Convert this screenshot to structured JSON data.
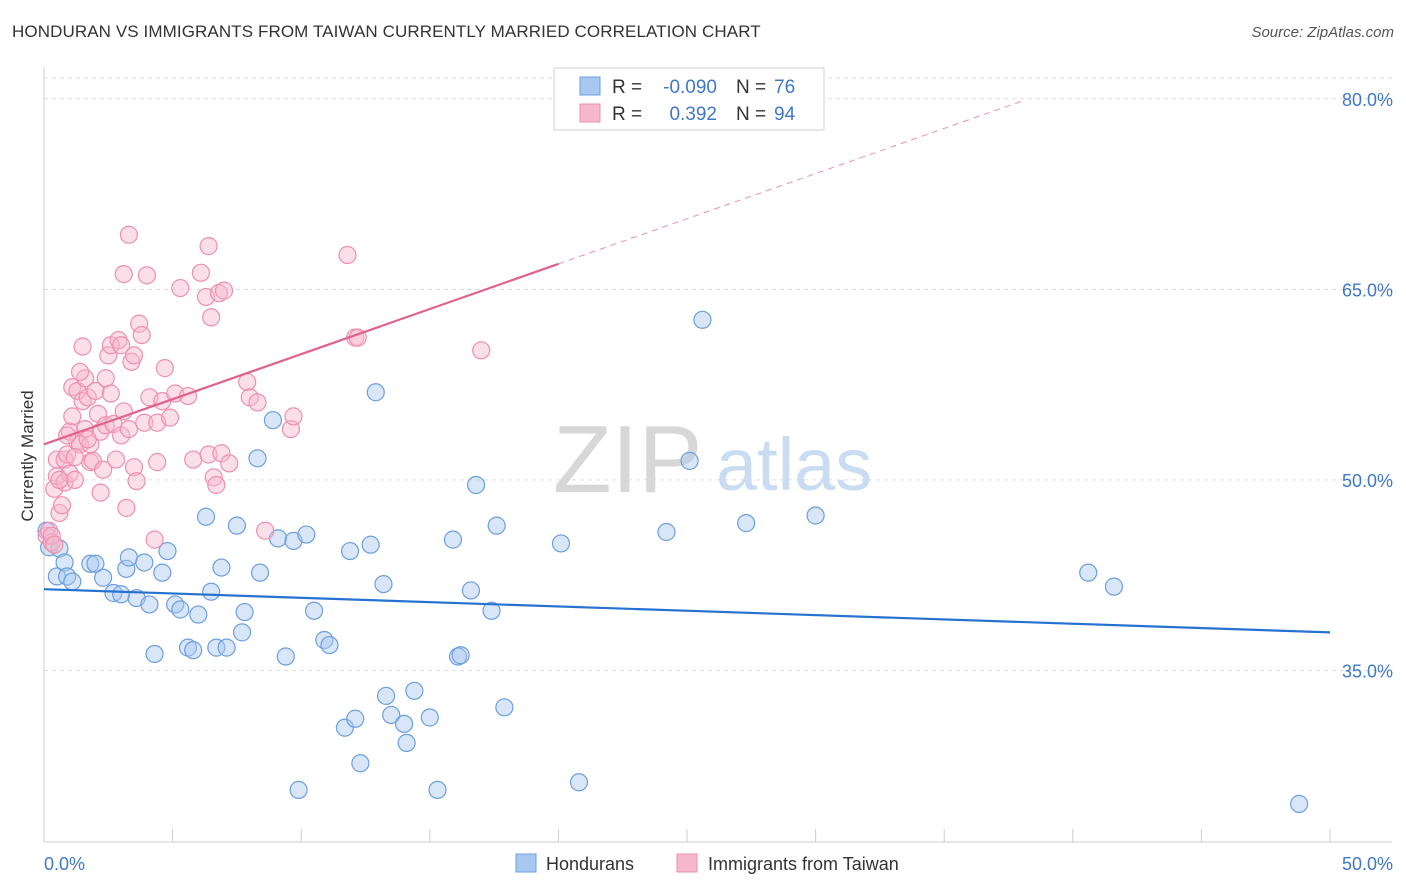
{
  "header": {
    "title": "HONDURAN VS IMMIGRANTS FROM TAIWAN CURRENTLY MARRIED CORRELATION CHART",
    "source": "Source: ZipAtlas.com"
  },
  "watermark": {
    "zip": "ZIP",
    "atlas": "atlas"
  },
  "colors": {
    "blue_fill": "#a9c8f0",
    "blue_stroke": "#6b9fe0",
    "blue_line": "#2672d0",
    "pink_fill": "#f6b8cc",
    "pink_stroke": "#ee8fae",
    "pink_line": "#e0628c",
    "value_text": "#3f78c8",
    "grid": "#dddddd"
  },
  "legend_box": {
    "rows": [
      {
        "r_label": "R =",
        "r_value": "-0.090",
        "n_label": "N =",
        "n_value": "76",
        "color": "blue"
      },
      {
        "r_label": "R =",
        "r_value": "0.392",
        "n_label": "N =",
        "n_value": "94",
        "color": "pink"
      }
    ]
  },
  "chart_data": {
    "type": "scatter",
    "title": "HONDURAN VS IMMIGRANTS FROM TAIWAN CURRENTLY MARRIED CORRELATION CHART",
    "xlabel": "",
    "ylabel": "Currently Married",
    "xlim": [
      0,
      50
    ],
    "ylim": [
      21.5,
      82.5
    ],
    "x_tick_labels": [
      {
        "value": 0,
        "label": "0.0%"
      },
      {
        "value": 50,
        "label": "50.0%"
      }
    ],
    "y_tick_labels": [
      {
        "value": 35,
        "label": "35.0%"
      },
      {
        "value": 50,
        "label": "50.0%"
      },
      {
        "value": 65,
        "label": "65.0%"
      },
      {
        "value": 80,
        "label": "80.0%"
      }
    ],
    "y_gridlines": [
      35,
      50,
      65,
      80
    ],
    "x_minor_ticks": [
      0,
      5,
      10,
      15,
      20,
      25,
      30,
      35,
      40,
      45,
      50
    ],
    "grid": true,
    "legend_position": "bottom-center",
    "series": [
      {
        "name": "Hondurans",
        "color": "blue",
        "r": -0.09,
        "n": 76,
        "trend": {
          "x": [
            0,
            50
          ],
          "y": [
            41.4,
            38.0
          ],
          "dashed_after": null
        },
        "points": [
          [
            0.1,
            46.0
          ],
          [
            0.2,
            44.7
          ],
          [
            0.5,
            42.4
          ],
          [
            0.6,
            44.6
          ],
          [
            0.8,
            43.5
          ],
          [
            0.9,
            42.4
          ],
          [
            1.1,
            42.0
          ],
          [
            1.8,
            43.4
          ],
          [
            2.0,
            43.4
          ],
          [
            2.3,
            42.3
          ],
          [
            2.7,
            41.1
          ],
          [
            3.0,
            41.0
          ],
          [
            3.2,
            43.0
          ],
          [
            3.3,
            43.9
          ],
          [
            3.6,
            40.7
          ],
          [
            3.9,
            43.5
          ],
          [
            4.1,
            40.2
          ],
          [
            4.3,
            36.3
          ],
          [
            4.6,
            42.7
          ],
          [
            4.8,
            44.4
          ],
          [
            5.1,
            40.2
          ],
          [
            5.3,
            39.8
          ],
          [
            5.6,
            36.8
          ],
          [
            5.8,
            36.6
          ],
          [
            6.0,
            39.4
          ],
          [
            6.3,
            47.1
          ],
          [
            6.5,
            41.2
          ],
          [
            6.7,
            36.8
          ],
          [
            6.9,
            43.1
          ],
          [
            7.1,
            36.8
          ],
          [
            7.5,
            46.4
          ],
          [
            7.7,
            38.0
          ],
          [
            7.8,
            39.6
          ],
          [
            8.3,
            51.7
          ],
          [
            8.4,
            42.7
          ],
          [
            8.9,
            54.7
          ],
          [
            9.1,
            45.4
          ],
          [
            9.4,
            36.1
          ],
          [
            9.7,
            45.2
          ],
          [
            9.9,
            25.6
          ],
          [
            10.2,
            45.7
          ],
          [
            10.5,
            39.7
          ],
          [
            10.9,
            37.4
          ],
          [
            11.1,
            37.0
          ],
          [
            11.7,
            30.5
          ],
          [
            11.9,
            44.4
          ],
          [
            12.1,
            31.2
          ],
          [
            12.3,
            27.7
          ],
          [
            12.7,
            44.9
          ],
          [
            12.9,
            56.9
          ],
          [
            13.2,
            41.8
          ],
          [
            13.3,
            33.0
          ],
          [
            13.5,
            31.5
          ],
          [
            14.0,
            30.8
          ],
          [
            14.1,
            29.3
          ],
          [
            14.4,
            33.4
          ],
          [
            15.0,
            31.3
          ],
          [
            15.3,
            25.6
          ],
          [
            15.9,
            45.3
          ],
          [
            16.1,
            36.1
          ],
          [
            16.2,
            36.2
          ],
          [
            16.6,
            41.3
          ],
          [
            16.8,
            49.6
          ],
          [
            17.4,
            39.7
          ],
          [
            17.6,
            46.4
          ],
          [
            17.9,
            32.1
          ],
          [
            20.1,
            45.0
          ],
          [
            20.8,
            26.2
          ],
          [
            24.2,
            45.9
          ],
          [
            25.1,
            51.5
          ],
          [
            25.6,
            62.6
          ],
          [
            27.3,
            46.6
          ],
          [
            30.0,
            47.2
          ],
          [
            40.6,
            42.7
          ],
          [
            41.6,
            41.6
          ],
          [
            48.8,
            24.5
          ]
        ]
      },
      {
        "name": "Immigrants from Taiwan",
        "color": "pink",
        "r": 0.392,
        "n": 94,
        "trend": {
          "x": [
            0,
            20,
            38
          ],
          "y": [
            52.8,
            67.0,
            79.8
          ],
          "dashed_after": 20
        },
        "points": [
          [
            0.1,
            45.6
          ],
          [
            0.2,
            46.0
          ],
          [
            0.3,
            45.1
          ],
          [
            0.4,
            49.3
          ],
          [
            0.5,
            50.3
          ],
          [
            0.5,
            51.6
          ],
          [
            0.6,
            47.4
          ],
          [
            0.7,
            48.0
          ],
          [
            0.8,
            49.8
          ],
          [
            0.8,
            51.6
          ],
          [
            0.9,
            52.0
          ],
          [
            1.0,
            53.8
          ],
          [
            1.0,
            50.5
          ],
          [
            1.1,
            57.3
          ],
          [
            1.1,
            55.0
          ],
          [
            1.2,
            50.0
          ],
          [
            1.3,
            57.0
          ],
          [
            1.3,
            53.0
          ],
          [
            1.4,
            52.8
          ],
          [
            1.5,
            60.5
          ],
          [
            1.5,
            56.2
          ],
          [
            1.6,
            54.0
          ],
          [
            1.6,
            58.0
          ],
          [
            1.7,
            56.5
          ],
          [
            1.8,
            52.8
          ],
          [
            1.8,
            51.4
          ],
          [
            1.9,
            51.5
          ],
          [
            2.0,
            57.0
          ],
          [
            2.1,
            55.2
          ],
          [
            2.2,
            53.8
          ],
          [
            2.3,
            50.8
          ],
          [
            2.4,
            54.3
          ],
          [
            2.4,
            58.0
          ],
          [
            2.5,
            59.8
          ],
          [
            2.6,
            60.6
          ],
          [
            2.6,
            56.8
          ],
          [
            2.7,
            54.4
          ],
          [
            2.8,
            51.6
          ],
          [
            2.9,
            61.0
          ],
          [
            3.0,
            60.6
          ],
          [
            3.0,
            53.5
          ],
          [
            3.1,
            66.2
          ],
          [
            3.1,
            55.4
          ],
          [
            3.2,
            47.8
          ],
          [
            3.3,
            69.3
          ],
          [
            3.3,
            54.0
          ],
          [
            3.4,
            59.3
          ],
          [
            3.5,
            59.8
          ],
          [
            3.5,
            51.0
          ],
          [
            3.6,
            49.9
          ],
          [
            3.7,
            62.3
          ],
          [
            3.8,
            61.4
          ],
          [
            3.9,
            54.5
          ],
          [
            4.0,
            66.1
          ],
          [
            4.1,
            56.5
          ],
          [
            4.3,
            45.3
          ],
          [
            4.4,
            51.4
          ],
          [
            4.4,
            54.5
          ],
          [
            4.6,
            56.2
          ],
          [
            4.7,
            58.8
          ],
          [
            4.9,
            54.9
          ],
          [
            5.1,
            56.8
          ],
          [
            5.3,
            65.1
          ],
          [
            5.6,
            56.6
          ],
          [
            5.8,
            51.6
          ],
          [
            6.1,
            66.3
          ],
          [
            6.3,
            64.4
          ],
          [
            6.4,
            52.0
          ],
          [
            6.4,
            68.4
          ],
          [
            6.5,
            62.8
          ],
          [
            6.6,
            50.2
          ],
          [
            6.7,
            49.6
          ],
          [
            6.8,
            64.7
          ],
          [
            6.9,
            52.1
          ],
          [
            7.0,
            64.9
          ],
          [
            7.2,
            51.3
          ],
          [
            7.9,
            57.7
          ],
          [
            8.0,
            56.5
          ],
          [
            8.3,
            56.1
          ],
          [
            8.6,
            46.0
          ],
          [
            9.6,
            54.0
          ],
          [
            9.7,
            55.0
          ],
          [
            11.8,
            67.7
          ],
          [
            12.1,
            61.2
          ],
          [
            12.2,
            61.2
          ],
          [
            17.0,
            60.2
          ],
          [
            0.3,
            45.6
          ],
          [
            0.6,
            50.0
          ],
          [
            0.9,
            53.5
          ],
          [
            1.2,
            51.8
          ],
          [
            1.4,
            58.5
          ],
          [
            1.7,
            53.2
          ],
          [
            2.2,
            49.0
          ],
          [
            0.4,
            44.9
          ]
        ]
      }
    ]
  },
  "bottom_legend": {
    "items": [
      {
        "label": "Hondurans",
        "color": "blue"
      },
      {
        "label": "Immigrants from Taiwan",
        "color": "pink"
      }
    ]
  }
}
